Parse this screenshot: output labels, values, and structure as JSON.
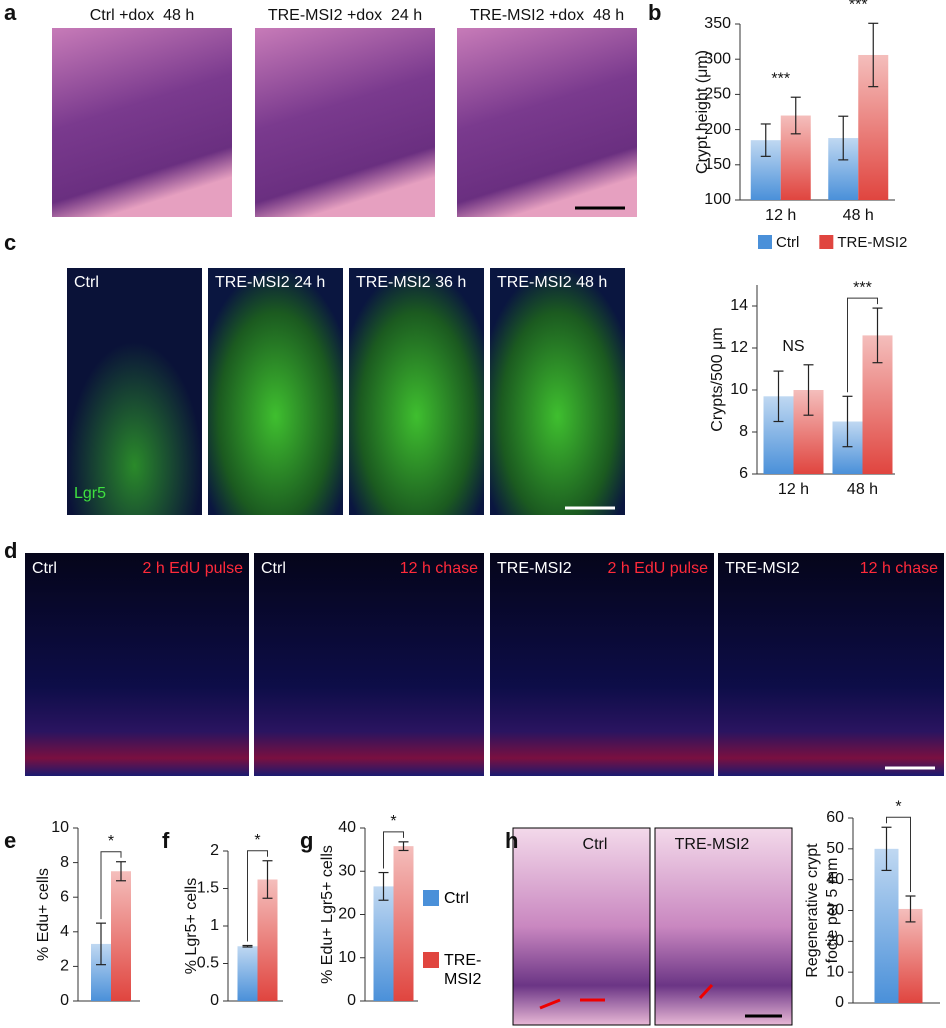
{
  "figure": {
    "a": {
      "label": "a",
      "captions": [
        "Ctrl +dox  48 h",
        "TRE-MSI2 +dox  24 h",
        "TRE-MSI2 +dox  48 h"
      ]
    },
    "b": {
      "label": "b"
    },
    "c": {
      "label": "c",
      "captions": [
        "Ctrl",
        "TRE-MSI2 24 h",
        "TRE-MSI2 36 h",
        "TRE-MSI2 48 h"
      ],
      "stain": "Lgr5"
    },
    "d": {
      "label": "d",
      "captions": [
        [
          "Ctrl",
          "2 h EdU pulse"
        ],
        [
          "Ctrl",
          "12 h chase"
        ],
        [
          "TRE-MSI2",
          "2 h EdU pulse"
        ],
        [
          "TRE-MSI2",
          "12 h chase"
        ]
      ]
    },
    "e": {
      "label": "e"
    },
    "f": {
      "label": "f"
    },
    "g": {
      "label": "g"
    },
    "h": {
      "label": "h",
      "captions": [
        "Ctrl",
        "TRE-MSI2"
      ]
    }
  },
  "chart_data": [
    {
      "type": "bar",
      "ylabel": [
        "Crypt height (μm)"
      ],
      "categories": [
        "12 h",
        "48 h"
      ],
      "series": [
        {
          "name": "Ctrl",
          "color": "#4a90d9",
          "values": [
            185,
            188
          ],
          "errors": [
            23,
            31
          ]
        },
        {
          "name": "TRE-MSI2",
          "color": "#e0453f",
          "values": [
            220,
            306
          ],
          "errors": [
            26,
            45
          ]
        }
      ],
      "ylim": [
        100,
        350
      ],
      "yticks": [
        100,
        150,
        200,
        250,
        300,
        350
      ],
      "annotations": [
        "***",
        "***"
      ],
      "brackets": [
        false,
        false
      ],
      "legend": "bottom"
    },
    {
      "type": "bar",
      "ylabel": [
        "Crypts/500 μm"
      ],
      "categories": [
        "12 h",
        "48 h"
      ],
      "series": [
        {
          "color": "#4a90d9",
          "values": [
            9.7,
            8.5
          ],
          "errors": [
            1.2,
            1.2
          ]
        },
        {
          "color": "#e0453f",
          "values": [
            10.0,
            12.6
          ],
          "errors": [
            1.2,
            1.3
          ]
        }
      ],
      "ylim": [
        6,
        15
      ],
      "yticks": [
        6,
        8,
        10,
        12,
        14
      ],
      "annotations": [
        "NS",
        "***"
      ],
      "brackets": [
        false,
        true
      ]
    },
    {
      "type": "bar",
      "ylabel": [
        "% Edu+ cells"
      ],
      "categories": [
        null
      ],
      "series": [
        {
          "color": "#4a90d9",
          "values": [
            3.3
          ],
          "errors": [
            1.2
          ]
        },
        {
          "color": "#e0453f",
          "values": [
            7.5
          ],
          "errors": [
            0.55
          ]
        }
      ],
      "ylim": [
        0,
        10
      ],
      "yticks": [
        0,
        2,
        4,
        6,
        8,
        10
      ],
      "annotations": [
        "*"
      ],
      "brackets": [
        true
      ]
    },
    {
      "type": "bar",
      "ylabel": [
        "% Lgr5+ cells"
      ],
      "categories": [
        null
      ],
      "series": [
        {
          "color": "#4a90d9",
          "values": [
            0.73
          ],
          "errors": [
            0.01
          ]
        },
        {
          "color": "#e0453f",
          "values": [
            1.62
          ],
          "errors": [
            0.25
          ]
        }
      ],
      "ylim": [
        0,
        2
      ],
      "yticks": [
        0,
        0.5,
        1,
        1.5,
        2
      ],
      "annotations": [
        "*"
      ],
      "brackets": [
        true
      ]
    },
    {
      "type": "bar",
      "ylabel": [
        "% Edu+ Lgr5+ cells"
      ],
      "categories": [
        null
      ],
      "series": [
        {
          "name": "Ctrl",
          "color": "#4a90d9",
          "values": [
            26.5
          ],
          "errors": [
            3.2
          ]
        },
        {
          "name": "TRE-MSI2",
          "color": "#e0453f",
          "values": [
            35.8
          ],
          "errors": [
            1.0
          ]
        }
      ],
      "ylim": [
        0,
        40
      ],
      "yticks": [
        0,
        10,
        20,
        30,
        40
      ],
      "annotations": [
        "*"
      ],
      "brackets": [
        true
      ],
      "legend": "right"
    },
    {
      "type": "bar",
      "ylabel": [
        "Regenerative crypt",
        "focie per 5 mm"
      ],
      "categories": [
        null
      ],
      "series": [
        {
          "color": "#4a90d9",
          "values": [
            50
          ],
          "errors": [
            7
          ]
        },
        {
          "color": "#e0453f",
          "values": [
            30.5
          ],
          "errors": [
            4.2
          ]
        }
      ],
      "ylim": [
        0,
        60
      ],
      "yticks": [
        0,
        10,
        20,
        30,
        40,
        50,
        60
      ],
      "annotations": [
        "*"
      ],
      "brackets": [
        true
      ]
    }
  ]
}
